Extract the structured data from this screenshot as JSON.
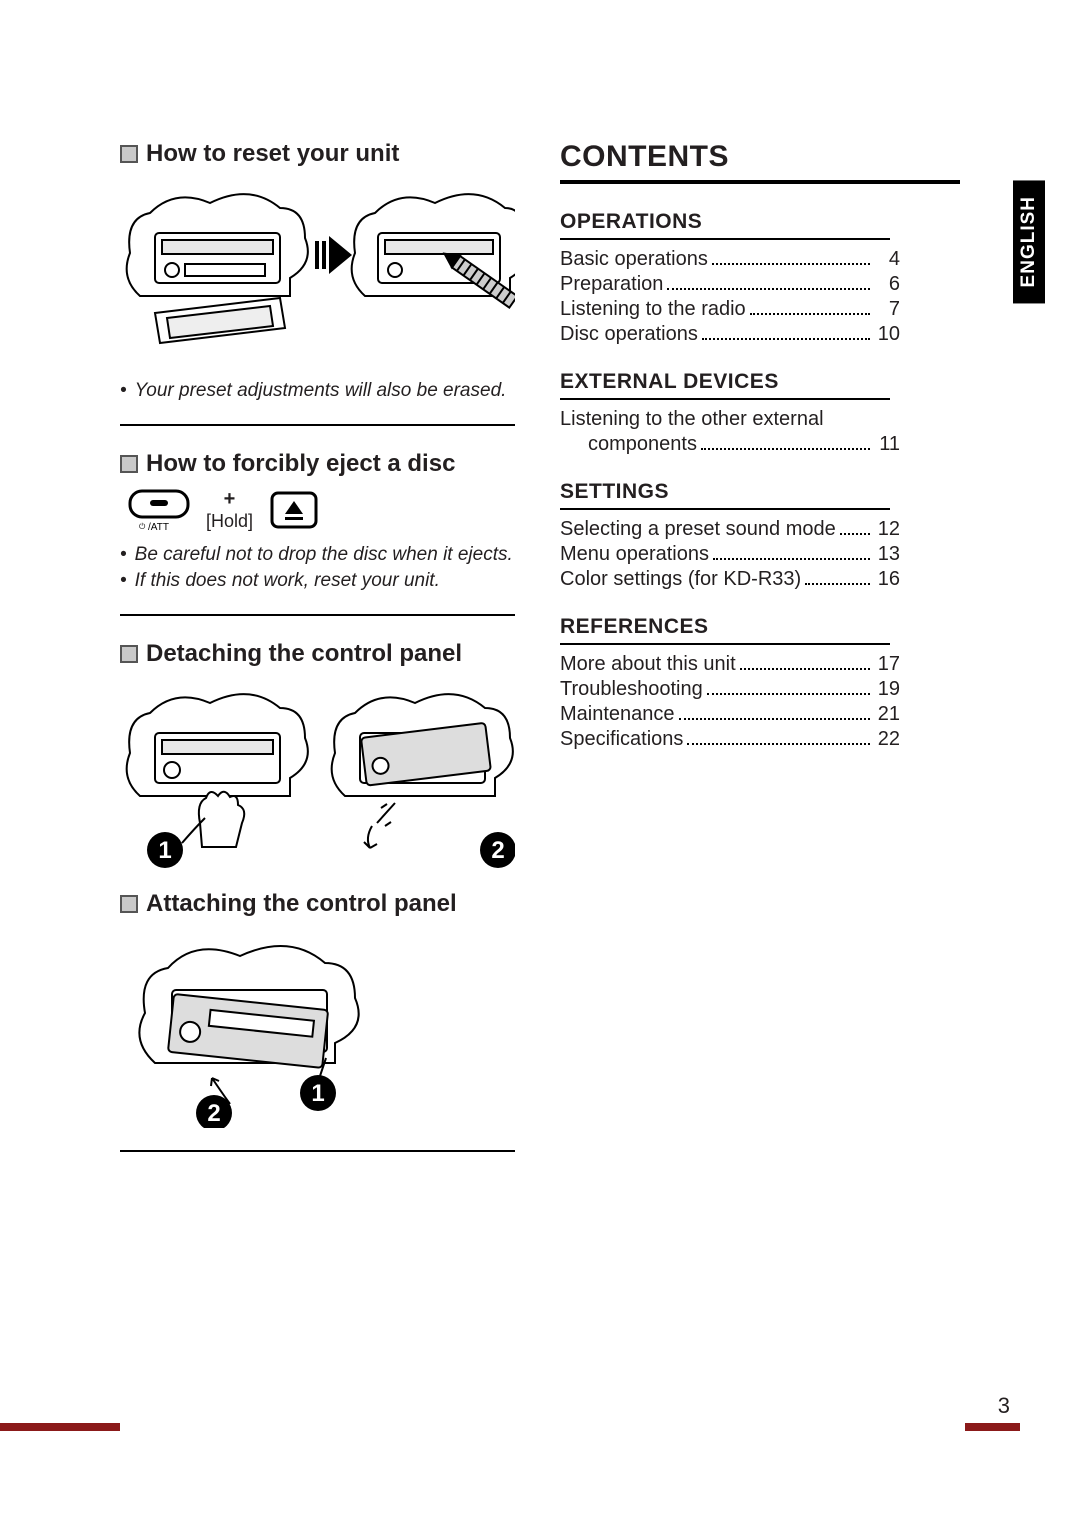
{
  "left": {
    "reset": {
      "title": "How to reset your unit",
      "note1": "Your preset adjustments will also be erased."
    },
    "eject": {
      "title": "How to forcibly eject a disc",
      "hold_label": "[Hold]",
      "att_label": "/ATT",
      "plus": "+",
      "note1": "Be careful not to drop the disc when it ejects.",
      "note2": "If this does not work, reset your unit."
    },
    "detach": {
      "title": "Detaching the control panel"
    },
    "attach": {
      "title": "Attaching the control panel"
    }
  },
  "contents": {
    "title": "CONTENTS",
    "sections": [
      {
        "heading": "OPERATIONS",
        "items": [
          {
            "label": "Basic operations",
            "page": "4"
          },
          {
            "label": "Preparation",
            "page": "6"
          },
          {
            "label": "Listening to the radio",
            "page": "7"
          },
          {
            "label": "Disc operations",
            "page": "10"
          }
        ]
      },
      {
        "heading": "EXTERNAL DEVICES",
        "items": [
          {
            "label": "Listening to the other external",
            "page": "",
            "no_dots": true
          },
          {
            "label": "components",
            "page": "11",
            "indent": true
          }
        ]
      },
      {
        "heading": "SETTINGS",
        "items": [
          {
            "label": "Selecting a preset sound mode",
            "page": "12"
          },
          {
            "label": "Menu operations",
            "page": "13"
          },
          {
            "label": "Color settings (for KD-R33)",
            "page": "16"
          }
        ]
      },
      {
        "heading": "REFERENCES",
        "items": [
          {
            "label": "More about this unit",
            "page": "17"
          },
          {
            "label": "Troubleshooting",
            "page": "19"
          },
          {
            "label": "Maintenance",
            "page": "21"
          },
          {
            "label": "Specifications",
            "page": "22"
          }
        ]
      }
    ]
  },
  "language_tab": "ENGLISH",
  "page_number": "3",
  "colors": {
    "text": "#231f20",
    "accent": "#8b1a1a",
    "bullet_fill": "#c9c9c9",
    "bullet_border": "#555555"
  }
}
